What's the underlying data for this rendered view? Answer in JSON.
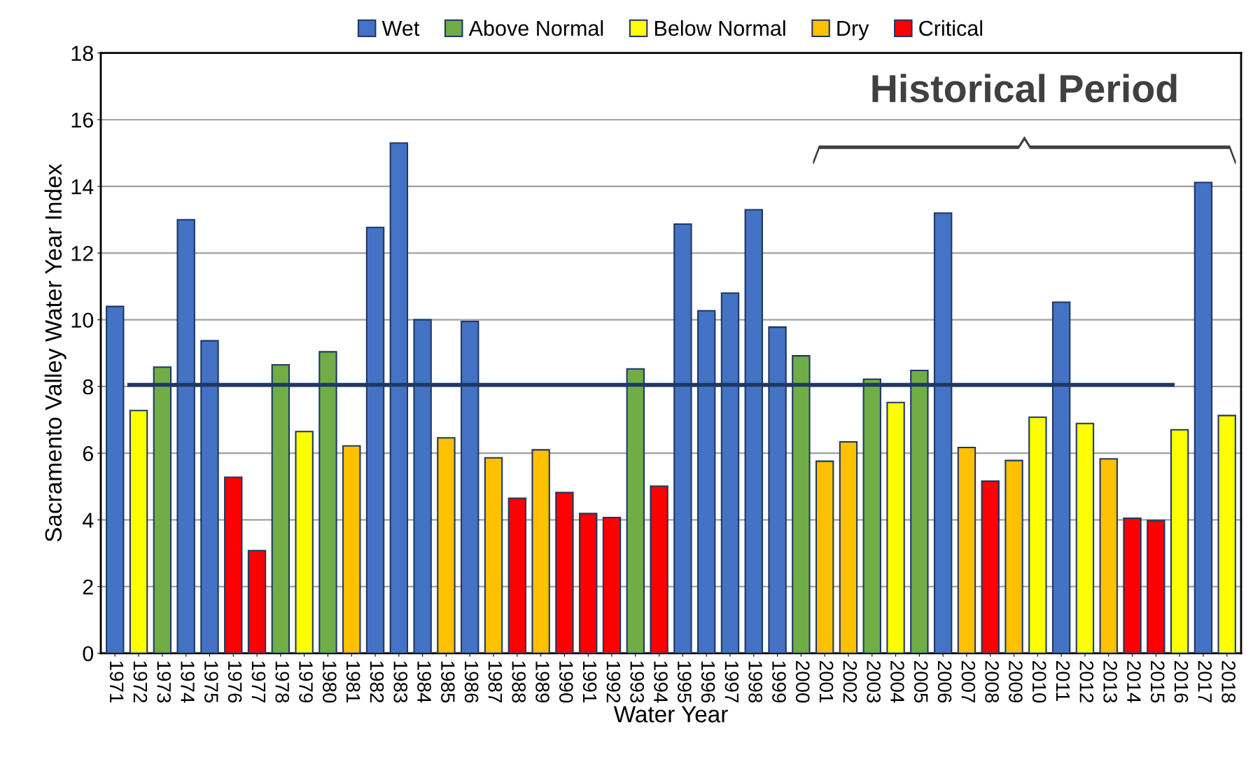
{
  "chart_data": {
    "type": "bar",
    "xlabel": "Water Year",
    "ylabel": "Sacramento Valley Water Year Index",
    "categories": [
      "1971",
      "1972",
      "1973",
      "1974",
      "1975",
      "1976",
      "1977",
      "1978",
      "1979",
      "1980",
      "1981",
      "1982",
      "1983",
      "1984",
      "1985",
      "1986",
      "1987",
      "1988",
      "1989",
      "1990",
      "1991",
      "1992",
      "1993",
      "1994",
      "1995",
      "1996",
      "1997",
      "1998",
      "1999",
      "2000",
      "2001",
      "2002",
      "2003",
      "2004",
      "2005",
      "2006",
      "2007",
      "2008",
      "2009",
      "2010",
      "2011",
      "2012",
      "2013",
      "2014",
      "2015",
      "2016",
      "2017",
      "2018"
    ],
    "series": [
      {
        "name": "Wet",
        "color": "#4472c4",
        "values": [
          10.4,
          null,
          null,
          13.0,
          9.37,
          null,
          null,
          null,
          null,
          null,
          null,
          12.77,
          15.3,
          10.0,
          null,
          9.95,
          null,
          null,
          null,
          null,
          null,
          null,
          null,
          null,
          12.87,
          10.27,
          10.8,
          13.3,
          9.78,
          null,
          null,
          null,
          null,
          null,
          null,
          13.2,
          null,
          null,
          null,
          null,
          10.53,
          null,
          null,
          null,
          null,
          null,
          14.12,
          null
        ]
      },
      {
        "name": "Above Normal",
        "color": "#70ad47",
        "values": [
          null,
          null,
          8.58,
          null,
          null,
          null,
          null,
          8.65,
          null,
          9.04,
          null,
          null,
          null,
          null,
          null,
          null,
          null,
          null,
          null,
          null,
          null,
          null,
          8.53,
          null,
          null,
          null,
          null,
          null,
          null,
          8.92,
          null,
          null,
          8.22,
          null,
          8.48,
          null,
          null,
          null,
          null,
          null,
          null,
          null,
          null,
          null,
          null,
          null,
          null,
          null
        ]
      },
      {
        "name": "Below Normal",
        "color": "#ffff00",
        "values": [
          null,
          7.28,
          null,
          null,
          null,
          null,
          null,
          null,
          6.65,
          null,
          null,
          null,
          null,
          null,
          null,
          null,
          null,
          null,
          null,
          null,
          null,
          null,
          null,
          null,
          null,
          null,
          null,
          null,
          null,
          null,
          null,
          null,
          null,
          7.52,
          null,
          null,
          null,
          null,
          null,
          7.08,
          null,
          6.89,
          null,
          null,
          null,
          6.7,
          null,
          7.13
        ]
      },
      {
        "name": "Dry",
        "color": "#ffc000",
        "values": [
          null,
          null,
          null,
          null,
          null,
          null,
          null,
          null,
          null,
          null,
          6.22,
          null,
          null,
          null,
          6.46,
          null,
          5.86,
          null,
          6.1,
          null,
          null,
          null,
          null,
          null,
          null,
          null,
          null,
          null,
          null,
          null,
          5.76,
          6.34,
          null,
          null,
          null,
          null,
          6.17,
          null,
          5.78,
          null,
          null,
          null,
          5.83,
          null,
          null,
          null,
          null,
          null
        ]
      },
      {
        "name": "Critical",
        "color": "#ff0000",
        "values": [
          null,
          null,
          null,
          null,
          null,
          5.28,
          3.08,
          null,
          null,
          null,
          null,
          null,
          null,
          null,
          null,
          null,
          null,
          4.65,
          null,
          4.82,
          4.19,
          4.07,
          null,
          5.01,
          null,
          null,
          null,
          null,
          null,
          null,
          null,
          null,
          null,
          null,
          null,
          null,
          null,
          5.16,
          null,
          null,
          null,
          null,
          null,
          4.05,
          3.98,
          null,
          null,
          null
        ]
      }
    ],
    "ylim": [
      0,
      18
    ],
    "yticks": [
      0,
      2,
      4,
      6,
      8,
      10,
      12,
      14,
      16,
      18
    ],
    "grid": "y",
    "legend": "top",
    "ref_lines": [
      {
        "axis": "y",
        "value": 8.05,
        "color": "#1f3864"
      }
    ],
    "annotations": [
      "Historical Period"
    ]
  }
}
